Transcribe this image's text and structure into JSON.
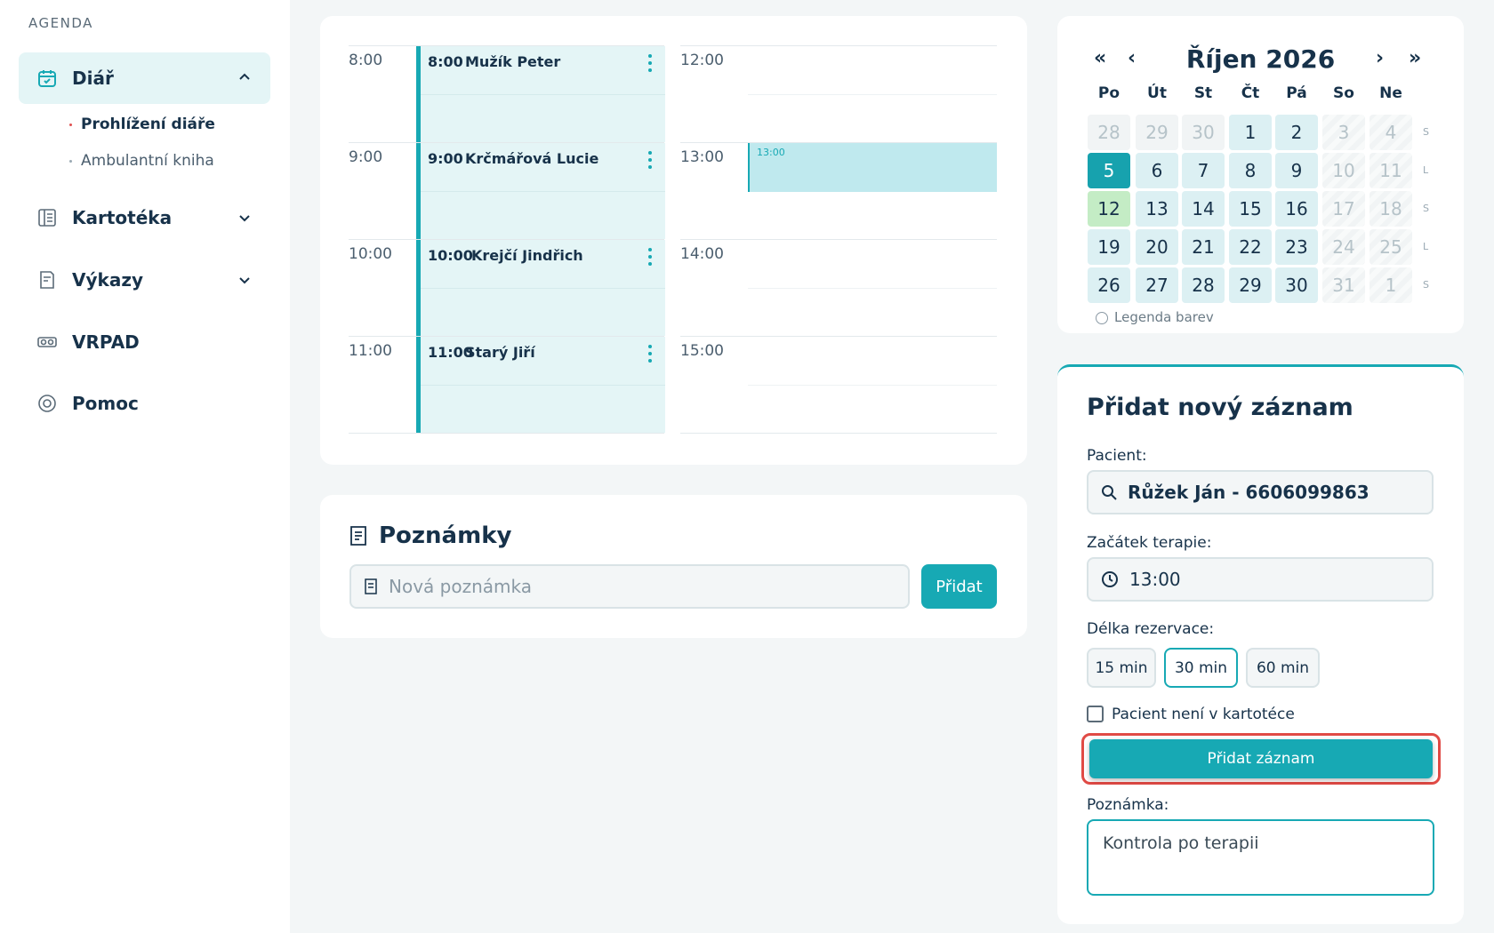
{
  "sidebar": {
    "section": "AGENDA",
    "items": [
      {
        "label": "Diář",
        "subitems": [
          "Prohlížení diáře",
          "Ambulantní kniha"
        ]
      },
      {
        "label": "Kartotéka"
      },
      {
        "label": "Výkazy"
      },
      {
        "label": "VRPAD"
      },
      {
        "label": "Pomoc"
      }
    ]
  },
  "schedule": {
    "left": [
      {
        "time": "8:00",
        "event_time": "8:00",
        "event_name": "Mužík Peter"
      },
      {
        "time": "9:00",
        "event_time": "9:00",
        "event_name": "Krčmářová Lucie"
      },
      {
        "time": "10:00",
        "event_time": "10:00",
        "event_name": "Krejčí Jindřich"
      },
      {
        "time": "11:00",
        "event_time": "11:00",
        "event_name": "Starý Jiří"
      }
    ],
    "right": [
      "12:00",
      "13:00",
      "14:00",
      "15:00"
    ],
    "slot": "13:00"
  },
  "notes": {
    "title": "Poznámky",
    "placeholder": "Nová poznámka",
    "button": "Přidat"
  },
  "calendar": {
    "nav": [
      "«",
      "‹",
      "›",
      "»"
    ],
    "title": "Říjen 2026",
    "weekdays": [
      "Po",
      "Út",
      "St",
      "Čt",
      "Pá",
      "So",
      "Ne"
    ],
    "weeks": [
      [
        "28",
        "29",
        "30",
        "1",
        "2",
        "3",
        "4"
      ],
      [
        "5",
        "6",
        "7",
        "8",
        "9",
        "10",
        "11"
      ],
      [
        "12",
        "13",
        "14",
        "15",
        "16",
        "17",
        "18"
      ],
      [
        "19",
        "20",
        "21",
        "22",
        "23",
        "24",
        "25"
      ],
      [
        "26",
        "27",
        "28",
        "29",
        "30",
        "31",
        "1"
      ]
    ],
    "week_marks": [
      "S",
      "L",
      "S",
      "L",
      "S"
    ],
    "selected": "5",
    "today": "12",
    "legend": "Legenda barev"
  },
  "form": {
    "title": "Přidat nový záznam",
    "patient_label": "Pacient:",
    "patient_value": "Růžek Ján - 6606099863",
    "start_label": "Začátek terapie:",
    "start_value": "13:00",
    "duration_label": "Délka rezervace:",
    "durations": [
      "15 min",
      "30 min",
      "60 min"
    ],
    "selected_duration": "30 min",
    "checkbox_label": "Pacient není v kartotéce",
    "submit": "Přidat záznam",
    "note_label": "Poznámka:",
    "note_value": "Kontrola po terapii"
  }
}
